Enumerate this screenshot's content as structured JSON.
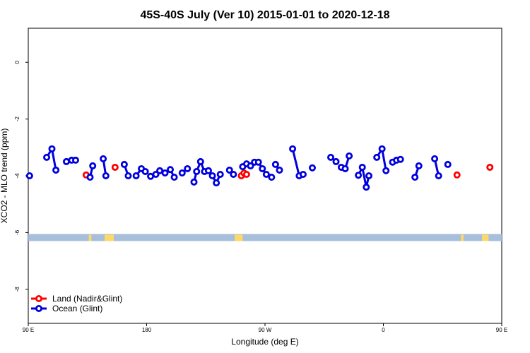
{
  "chart_data": {
    "type": "line",
    "title": "45S-40S July (Ver 10)   2015-01-01 to 2020-12-18",
    "xlabel": "Longitude (deg E)",
    "ylabel": "XCO2 - MLO trend (ppm)",
    "xlim": [
      90,
      450
    ],
    "ylim": [
      -9.2,
      1.2
    ],
    "x_ticks": [
      {
        "value": 90,
        "label": "90 E"
      },
      {
        "value": 180,
        "label": "180"
      },
      {
        "value": 270,
        "label": "90 W"
      },
      {
        "value": 360,
        "label": "0"
      },
      {
        "value": 450,
        "label": "90 E"
      },
      {
        "value": 540,
        "label": "180"
      }
    ],
    "y_ticks": [
      {
        "value": 0,
        "label": "0"
      },
      {
        "value": -2,
        "label": "-2"
      },
      {
        "value": -4,
        "label": "-4"
      },
      {
        "value": -6,
        "label": "-6"
      },
      {
        "value": -8,
        "label": "-8"
      }
    ],
    "grid": false,
    "legend_position": "bottom-left",
    "series": [
      {
        "name": "Land (Nadir&Glint)",
        "color": "#ff0000",
        "segments": [
          [
            [
              134,
              -3.97
            ]
          ],
          [
            [
              156,
              -3.7
            ]
          ],
          [
            [
              252,
              -4.0
            ],
            [
              254,
              -3.9
            ],
            [
              256,
              -3.95
            ]
          ],
          [
            [
              416,
              -3.97
            ]
          ],
          [
            [
              441,
              -3.7
            ]
          ]
        ]
      },
      {
        "name": "Ocean (Glint)",
        "color": "#0000dd",
        "segments": [
          [
            [
              91,
              -4.0
            ]
          ],
          [
            [
              104,
              -3.35
            ],
            [
              108,
              -3.05
            ],
            [
              111,
              -3.8
            ]
          ],
          [
            [
              119,
              -3.5
            ],
            [
              123,
              -3.45
            ],
            [
              126,
              -3.45
            ]
          ],
          [
            [
              137,
              -4.05
            ],
            [
              139,
              -3.65
            ]
          ],
          [
            [
              147,
              -3.4
            ],
            [
              149,
              -4.0
            ]
          ],
          [
            [
              163,
              -3.6
            ],
            [
              166,
              -4.0
            ]
          ],
          [
            [
              172,
              -4.0
            ],
            [
              176,
              -3.75
            ],
            [
              179,
              -3.85
            ]
          ],
          [
            [
              183,
              -4.02
            ],
            [
              187,
              -3.95
            ],
            [
              190,
              -3.82
            ],
            [
              194,
              -3.9
            ],
            [
              198,
              -3.78
            ],
            [
              201,
              -4.05
            ]
          ],
          [
            [
              207,
              -3.9
            ],
            [
              211,
              -3.75
            ]
          ],
          [
            [
              216,
              -4.22
            ],
            [
              218,
              -3.85
            ],
            [
              221,
              -3.5
            ],
            [
              224,
              -3.85
            ],
            [
              227,
              -3.82
            ]
          ],
          [
            [
              230,
              -4.0
            ],
            [
              233,
              -4.25
            ],
            [
              236,
              -3.95
            ]
          ],
          [
            [
              243,
              -3.8
            ],
            [
              246,
              -3.95
            ]
          ],
          [
            [
              253,
              -3.68
            ],
            [
              256,
              -3.58
            ],
            [
              259,
              -3.65
            ],
            [
              262,
              -3.52
            ],
            [
              265,
              -3.52
            ],
            [
              268,
              -3.75
            ],
            [
              271,
              -3.95
            ],
            [
              275,
              -4.05
            ]
          ],
          [
            [
              278,
              -3.6
            ],
            [
              281,
              -3.8
            ]
          ],
          [
            [
              291,
              -3.05
            ],
            [
              296,
              -4.0
            ],
            [
              299,
              -3.95
            ]
          ],
          [
            [
              306,
              -3.72
            ]
          ],
          [
            [
              320,
              -3.35
            ],
            [
              324,
              -3.5
            ]
          ],
          [
            [
              328,
              -3.7
            ],
            [
              331,
              -3.75
            ],
            [
              334,
              -3.3
            ]
          ],
          [
            [
              341,
              -3.98
            ],
            [
              344,
              -3.7
            ],
            [
              347,
              -4.4
            ],
            [
              349,
              -4.0
            ]
          ],
          [
            [
              355,
              -3.35
            ],
            [
              359,
              -3.05
            ],
            [
              362,
              -3.82
            ]
          ],
          [
            [
              367,
              -3.52
            ],
            [
              370,
              -3.45
            ],
            [
              373,
              -3.42
            ]
          ],
          [
            [
              384,
              -4.05
            ],
            [
              387,
              -3.65
            ]
          ],
          [
            [
              399,
              -3.4
            ],
            [
              402,
              -4.0
            ]
          ],
          [
            [
              409,
              -3.6
            ]
          ]
        ]
      }
    ],
    "surface_band": {
      "y_range": [
        -6.05,
        -6.3
      ],
      "ocean_color": "#a8bfdc",
      "land_color": "#ffd966",
      "land_spans": [
        [
          136,
          138
        ],
        [
          148,
          151
        ],
        [
          151,
          155
        ],
        [
          247,
          253
        ],
        [
          419,
          421
        ],
        [
          435,
          440
        ]
      ]
    }
  }
}
